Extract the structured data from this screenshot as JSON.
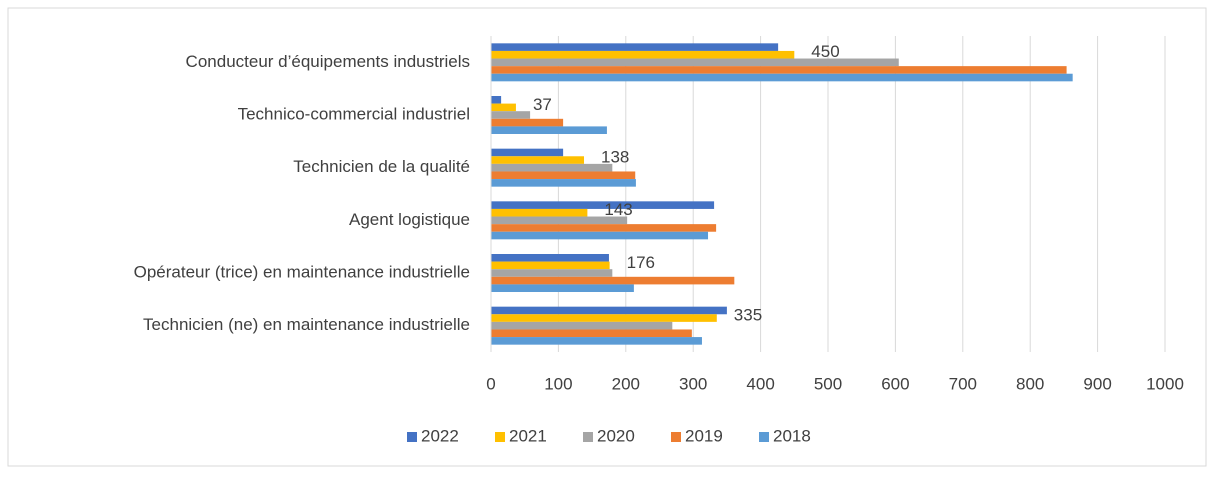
{
  "chart_data": {
    "type": "hbar",
    "categories": [
      "Conducteur d’équipements industriels",
      "Technico-commercial industriel",
      "Technicien de la qualité",
      "Agent logistique",
      "Opérateur (trice) en maintenance industrielle",
      "Technicien (ne) en maintenance industrielle"
    ],
    "series": [
      {
        "name": "2022",
        "color": "#4472c4",
        "values": [
          426,
          15,
          107,
          331,
          175,
          350
        ]
      },
      {
        "name": "2021",
        "color": "#ffc000",
        "values": [
          450,
          37,
          138,
          143,
          176,
          335
        ],
        "data_labels": true
      },
      {
        "name": "2020",
        "color": "#a5a5a5",
        "values": [
          605,
          58,
          180,
          202,
          180,
          269
        ]
      },
      {
        "name": "2019",
        "color": "#ed7d31",
        "values": [
          854,
          107,
          214,
          334,
          361,
          298
        ]
      },
      {
        "name": "2018",
        "color": "#5b9bd5",
        "values": [
          863,
          172,
          215,
          322,
          212,
          313
        ]
      }
    ],
    "xlim": [
      0,
      1000
    ],
    "xticks": [
      0,
      100,
      200,
      300,
      400,
      500,
      600,
      700,
      800,
      900,
      1000
    ],
    "grid": true,
    "legend": "bottom"
  }
}
